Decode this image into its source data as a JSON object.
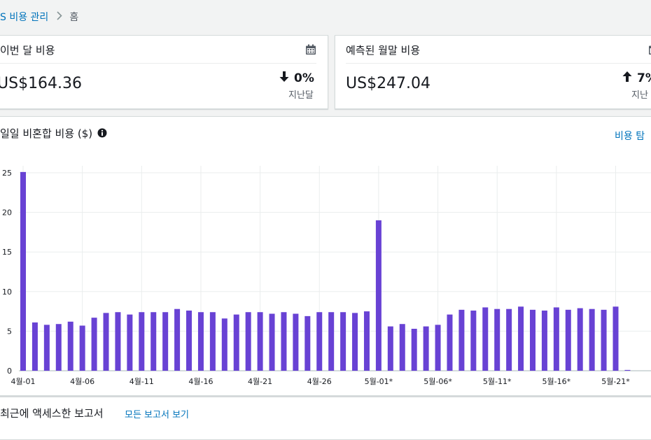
{
  "breadcrumb": {
    "parent": "S 비용 관리",
    "current": "홈"
  },
  "cards": [
    {
      "title": "이번 달 비용",
      "amount": "US$164.36",
      "delta": "0%",
      "delta_direction": "down",
      "delta_label": "지난달",
      "icon": "calendar-icon"
    },
    {
      "title": "예측된 월말 비용",
      "amount": "US$247.04",
      "delta": "7%",
      "delta_direction": "up",
      "delta_label": "지난",
      "icon": "calendar-icon"
    }
  ],
  "chart_section": {
    "title": "일일 비혼합 비용 ($)",
    "explore_link": "비용 탐"
  },
  "recent_reports": {
    "title": "최근에 액세스한 보고서",
    "view_all": "모든 보고서 보기"
  },
  "colors": {
    "bar": "#6842d4",
    "link": "#0073bb"
  },
  "chart_data": {
    "type": "bar",
    "x": [
      "4월-01",
      "4월-02",
      "4월-03",
      "4월-04",
      "4월-05",
      "4월-06",
      "4월-07",
      "4월-08",
      "4월-09",
      "4월-10",
      "4월-11",
      "4월-12",
      "4월-13",
      "4월-14",
      "4월-15",
      "4월-16",
      "4월-17",
      "4월-18",
      "4월-19",
      "4월-20",
      "4월-21",
      "4월-22",
      "4월-23",
      "4월-24",
      "4월-25",
      "4월-26",
      "4월-27",
      "4월-28",
      "4월-29",
      "4월-30",
      "5월-01*",
      "5월-02*",
      "5월-03*",
      "5월-04*",
      "5월-05*",
      "5월-06*",
      "5월-07*",
      "5월-08*",
      "5월-09*",
      "5월-10*",
      "5월-11*",
      "5월-12*",
      "5월-13*",
      "5월-14*",
      "5월-15*",
      "5월-16*",
      "5월-17*",
      "5월-18*",
      "5월-19*",
      "5월-20*",
      "5월-21*",
      "5월-22*"
    ],
    "x_tick_labels": [
      "4월-01",
      "4월-06",
      "4월-11",
      "4월-16",
      "4월-21",
      "4월-26",
      "5월-01*",
      "5월-06*",
      "5월-11*",
      "5월-16*",
      "5월-21*"
    ],
    "values": [
      25.1,
      6.1,
      5.8,
      5.9,
      6.2,
      5.7,
      6.7,
      7.3,
      7.4,
      7.1,
      7.4,
      7.4,
      7.4,
      7.8,
      7.6,
      7.4,
      7.4,
      6.6,
      7.1,
      7.4,
      7.4,
      7.2,
      7.4,
      7.2,
      6.9,
      7.4,
      7.4,
      7.4,
      7.3,
      7.5,
      19.0,
      5.6,
      5.9,
      5.3,
      5.6,
      5.8,
      7.1,
      7.7,
      7.6,
      8.0,
      7.8,
      7.8,
      8.1,
      7.7,
      7.6,
      8.0,
      7.7,
      7.9,
      7.8,
      7.7,
      8.1,
      0.1
    ],
    "y_ticks": [
      0,
      5,
      10,
      15,
      20,
      25
    ],
    "ylim": [
      0,
      26
    ],
    "xlabel": "",
    "ylabel": "",
    "grid": true
  }
}
